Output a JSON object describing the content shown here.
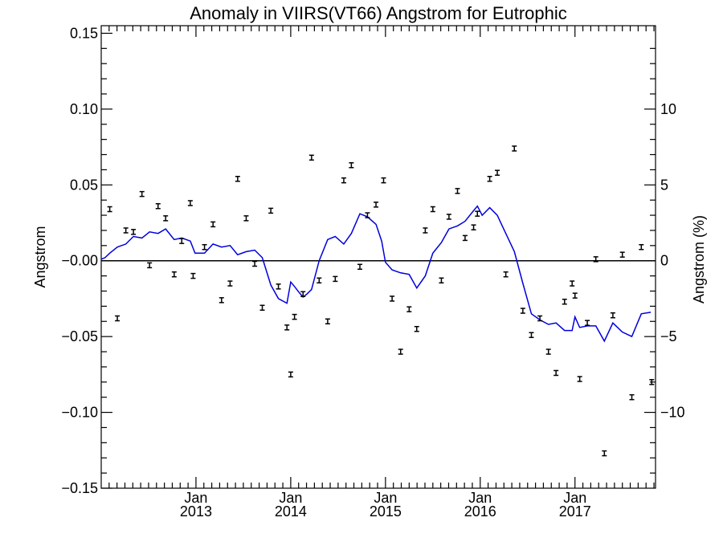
{
  "chart_data": {
    "type": "scatter",
    "title": "Anomaly in VIIRS(VT66) Angstrom for Eutrophic",
    "ylabel": "Angstrom",
    "y2label": "Angstrom (%)",
    "xlabel": "",
    "x_range": [
      2012.0,
      2017.85
    ],
    "ylim": [
      -0.15,
      0.155
    ],
    "y2lim": [
      -15,
      15.5
    ],
    "y_ticks": [
      -0.15,
      -0.1,
      -0.05,
      0.0,
      0.05,
      0.1,
      0.15
    ],
    "y_tick_labels": [
      "−0.15",
      "−0.10",
      "−0.05",
      "−0.00",
      "0.05",
      "0.10",
      "0.15"
    ],
    "y2_ticks": [
      -10,
      -5,
      0,
      5,
      10
    ],
    "y2_tick_labels": [
      "−10",
      "−5",
      "0",
      "5",
      "10"
    ],
    "x_ticks": [
      {
        "x": 2013.0,
        "month": "Jan",
        "year": "2013"
      },
      {
        "x": 2014.0,
        "month": "Jan",
        "year": "2014"
      },
      {
        "x": 2015.0,
        "month": "Jan",
        "year": "2015"
      },
      {
        "x": 2016.0,
        "month": "Jan",
        "year": "2016"
      },
      {
        "x": 2017.0,
        "month": "Jan",
        "year": "2017"
      }
    ],
    "grid": false,
    "zero_line": true,
    "points": [
      [
        2012.09,
        0.034
      ],
      [
        2012.17,
        -0.038
      ],
      [
        2012.26,
        0.02
      ],
      [
        2012.34,
        0.019
      ],
      [
        2012.43,
        0.044
      ],
      [
        2012.51,
        -0.003
      ],
      [
        2012.6,
        0.036
      ],
      [
        2012.68,
        0.028
      ],
      [
        2012.77,
        -0.009
      ],
      [
        2012.85,
        0.013
      ],
      [
        2012.94,
        0.038
      ],
      [
        2012.97,
        -0.01
      ],
      [
        2013.09,
        0.009
      ],
      [
        2013.18,
        0.024
      ],
      [
        2013.27,
        -0.026
      ],
      [
        2013.36,
        -0.015
      ],
      [
        2013.44,
        0.054
      ],
      [
        2013.53,
        0.028
      ],
      [
        2013.62,
        -0.002
      ],
      [
        2013.7,
        -0.031
      ],
      [
        2013.79,
        0.033
      ],
      [
        2013.87,
        -0.017
      ],
      [
        2013.96,
        -0.044
      ],
      [
        2014.0,
        -0.075
      ],
      [
        2014.04,
        -0.037
      ],
      [
        2014.13,
        -0.022
      ],
      [
        2014.22,
        0.068
      ],
      [
        2014.3,
        -0.013
      ],
      [
        2014.39,
        -0.04
      ],
      [
        2014.47,
        -0.012
      ],
      [
        2014.56,
        0.053
      ],
      [
        2014.64,
        0.063
      ],
      [
        2014.73,
        -0.004
      ],
      [
        2014.81,
        0.03
      ],
      [
        2014.9,
        0.037
      ],
      [
        2014.98,
        0.053
      ],
      [
        2015.07,
        -0.025
      ],
      [
        2015.16,
        -0.06
      ],
      [
        2015.25,
        -0.032
      ],
      [
        2015.33,
        -0.045
      ],
      [
        2015.42,
        0.02
      ],
      [
        2015.5,
        0.034
      ],
      [
        2015.59,
        -0.013
      ],
      [
        2015.67,
        0.029
      ],
      [
        2015.76,
        0.046
      ],
      [
        2015.84,
        0.015
      ],
      [
        2015.93,
        0.022
      ],
      [
        2015.97,
        0.031
      ],
      [
        2016.1,
        0.054
      ],
      [
        2016.18,
        0.058
      ],
      [
        2016.27,
        -0.009
      ],
      [
        2016.36,
        0.074
      ],
      [
        2016.45,
        -0.033
      ],
      [
        2016.54,
        -0.049
      ],
      [
        2016.63,
        -0.038
      ],
      [
        2016.72,
        -0.06
      ],
      [
        2016.8,
        -0.074
      ],
      [
        2016.89,
        -0.027
      ],
      [
        2016.97,
        -0.015
      ],
      [
        2017.0,
        -0.023
      ],
      [
        2017.05,
        -0.078
      ],
      [
        2017.13,
        -0.041
      ],
      [
        2017.22,
        0.001
      ],
      [
        2017.31,
        -0.127
      ],
      [
        2017.4,
        -0.036
      ],
      [
        2017.5,
        0.004
      ],
      [
        2017.6,
        -0.09
      ],
      [
        2017.7,
        0.009
      ],
      [
        2017.81,
        -0.08
      ]
    ],
    "line": [
      [
        2012.0,
        0.001
      ],
      [
        2012.04,
        0.002
      ],
      [
        2012.09,
        0.005
      ],
      [
        2012.17,
        0.009
      ],
      [
        2012.26,
        0.011
      ],
      [
        2012.34,
        0.016
      ],
      [
        2012.43,
        0.015
      ],
      [
        2012.51,
        0.019
      ],
      [
        2012.6,
        0.018
      ],
      [
        2012.68,
        0.021
      ],
      [
        2012.77,
        0.014
      ],
      [
        2012.85,
        0.015
      ],
      [
        2012.94,
        0.013
      ],
      [
        2012.99,
        0.005
      ],
      [
        2013.09,
        0.005
      ],
      [
        2013.18,
        0.011
      ],
      [
        2013.27,
        0.009
      ],
      [
        2013.36,
        0.01
      ],
      [
        2013.44,
        0.004
      ],
      [
        2013.53,
        0.006
      ],
      [
        2013.62,
        0.007
      ],
      [
        2013.7,
        0.002
      ],
      [
        2013.79,
        -0.016
      ],
      [
        2013.87,
        -0.025
      ],
      [
        2013.96,
        -0.028
      ],
      [
        2014.0,
        -0.014
      ],
      [
        2014.04,
        -0.017
      ],
      [
        2014.09,
        -0.021
      ],
      [
        2014.13,
        -0.024
      ],
      [
        2014.17,
        -0.022
      ],
      [
        2014.22,
        -0.019
      ],
      [
        2014.3,
        0.0
      ],
      [
        2014.39,
        0.014
      ],
      [
        2014.47,
        0.016
      ],
      [
        2014.56,
        0.011
      ],
      [
        2014.64,
        0.018
      ],
      [
        2014.73,
        0.031
      ],
      [
        2014.81,
        0.029
      ],
      [
        2014.9,
        0.024
      ],
      [
        2014.96,
        0.013
      ],
      [
        2015.0,
        -0.001
      ],
      [
        2015.07,
        -0.006
      ],
      [
        2015.16,
        -0.008
      ],
      [
        2015.25,
        -0.009
      ],
      [
        2015.33,
        -0.018
      ],
      [
        2015.42,
        -0.01
      ],
      [
        2015.5,
        0.005
      ],
      [
        2015.59,
        0.012
      ],
      [
        2015.67,
        0.021
      ],
      [
        2015.76,
        0.023
      ],
      [
        2015.84,
        0.026
      ],
      [
        2015.93,
        0.033
      ],
      [
        2015.97,
        0.036
      ],
      [
        2016.02,
        0.03
      ],
      [
        2016.1,
        0.035
      ],
      [
        2016.18,
        0.03
      ],
      [
        2016.27,
        0.018
      ],
      [
        2016.36,
        0.006
      ],
      [
        2016.45,
        -0.015
      ],
      [
        2016.54,
        -0.035
      ],
      [
        2016.63,
        -0.039
      ],
      [
        2016.72,
        -0.042
      ],
      [
        2016.8,
        -0.041
      ],
      [
        2016.89,
        -0.046
      ],
      [
        2016.97,
        -0.046
      ],
      [
        2017.0,
        -0.037
      ],
      [
        2017.05,
        -0.044
      ],
      [
        2017.13,
        -0.043
      ],
      [
        2017.22,
        -0.043
      ],
      [
        2017.31,
        -0.053
      ],
      [
        2017.4,
        -0.041
      ],
      [
        2017.5,
        -0.047
      ],
      [
        2017.6,
        -0.05
      ],
      [
        2017.7,
        -0.035
      ],
      [
        2017.8,
        -0.034
      ]
    ]
  }
}
